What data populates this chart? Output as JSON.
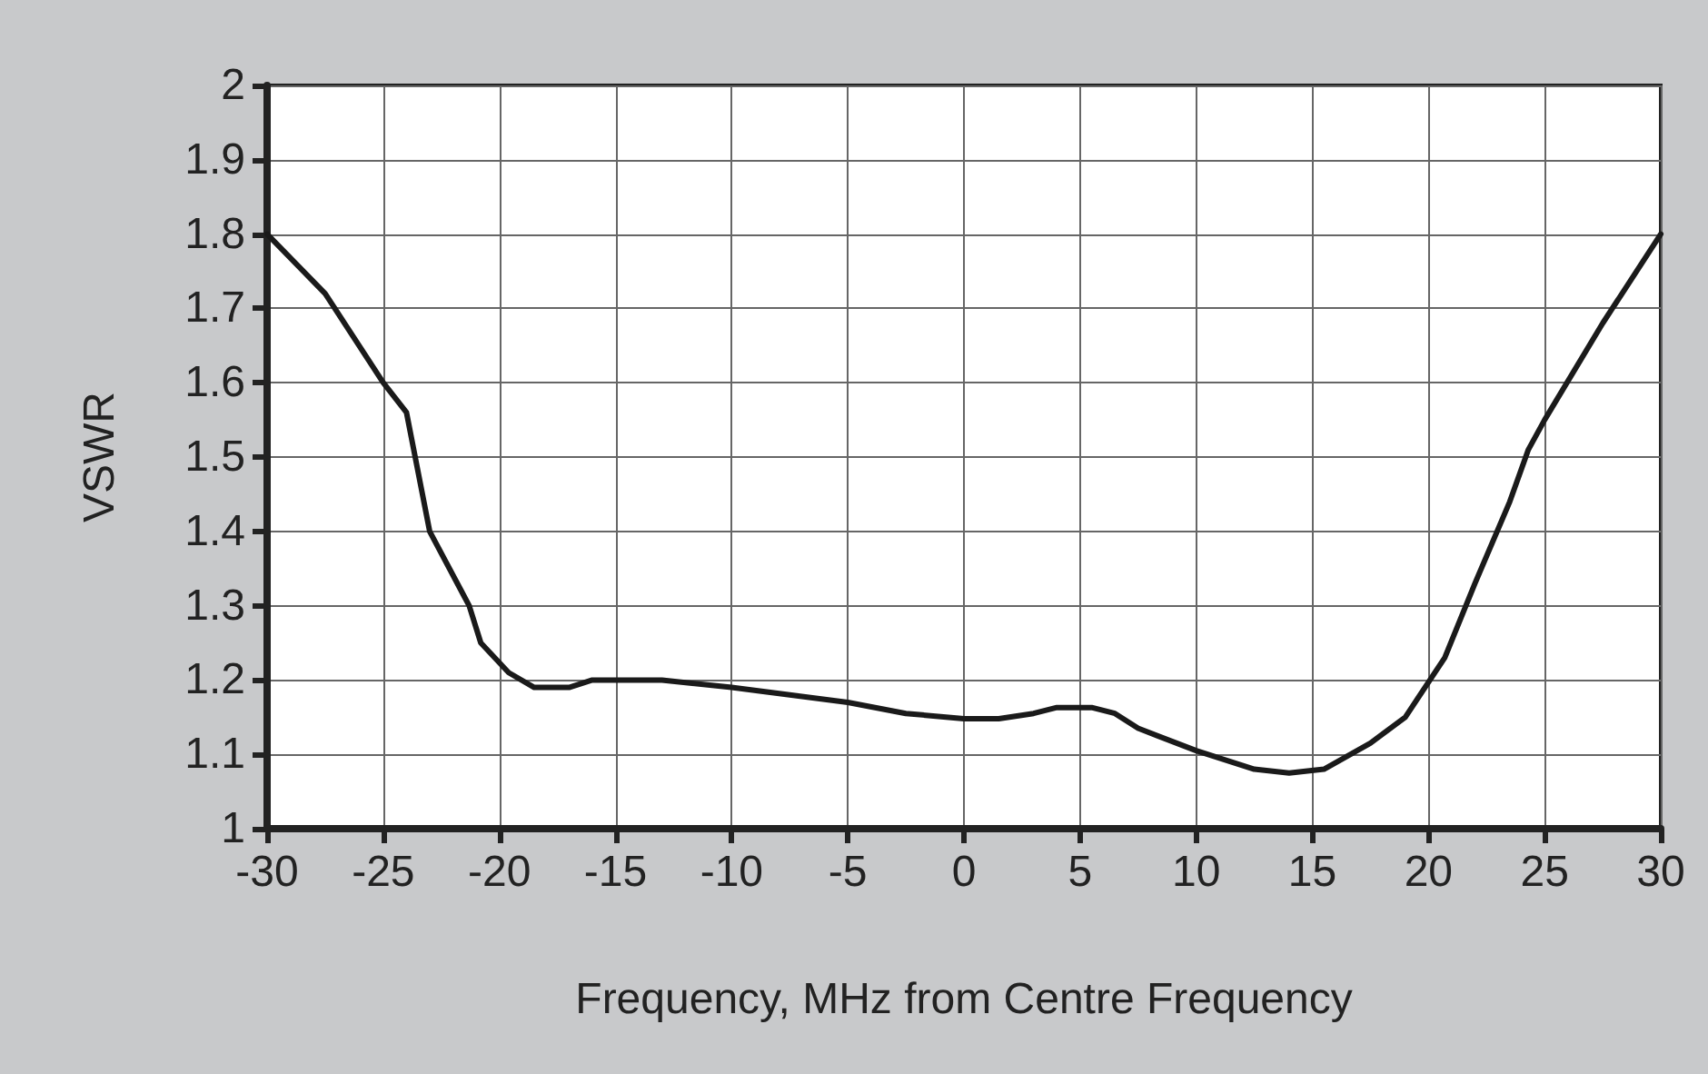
{
  "chart_data": {
    "type": "line",
    "xlabel": "Frequency, MHz from Centre Frequency",
    "ylabel": "VSWR",
    "x": [
      -30,
      -27.5,
      -25,
      -24,
      -23,
      -21.3,
      -20.8,
      -19.6,
      -18.5,
      -17,
      -16,
      -13,
      -10,
      -7.5,
      -5,
      -2.5,
      0,
      1.5,
      3,
      4,
      5.5,
      6.5,
      7.5,
      10,
      12.5,
      14,
      15.5,
      17.5,
      19,
      20.7,
      22,
      23.5,
      24.3,
      25,
      27.5,
      30
    ],
    "series": [
      {
        "color": "#1a1a1a",
        "values": [
          1.8,
          1.72,
          1.6,
          1.56,
          1.4,
          1.3,
          1.25,
          1.21,
          1.19,
          1.19,
          1.2,
          1.2,
          1.19,
          1.18,
          1.17,
          1.155,
          1.148,
          1.148,
          1.155,
          1.163,
          1.163,
          1.155,
          1.135,
          1.105,
          1.08,
          1.075,
          1.08,
          1.115,
          1.15,
          1.23,
          1.33,
          1.44,
          1.51,
          1.55,
          1.68,
          1.8
        ]
      }
    ],
    "xlim": [
      -30,
      30
    ],
    "xticks": [
      -30,
      -25,
      -20,
      -15,
      -10,
      -5,
      0,
      5,
      10,
      15,
      20,
      25,
      30
    ],
    "ylim": [
      1,
      2
    ],
    "yticks": [
      1,
      1.1,
      1.2,
      1.3,
      1.4,
      1.5,
      1.6,
      1.7,
      1.8,
      1.9,
      2
    ],
    "grid": true,
    "marker": "none",
    "line_style": "solid"
  }
}
